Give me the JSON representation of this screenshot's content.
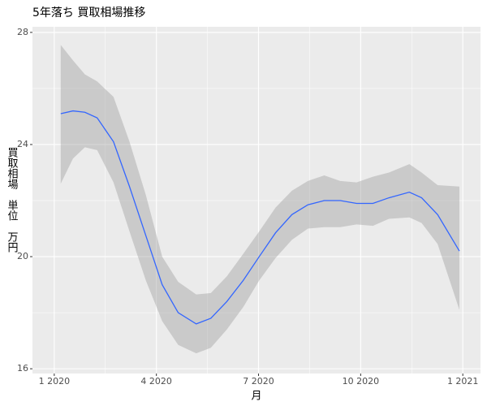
{
  "chart_data": {
    "type": "smooth",
    "title": "5年落ち 買取相場推移",
    "x_label": "月",
    "y_label": "買取相場　単位　万円",
    "x": [
      1.19,
      1.55,
      1.9,
      2.26,
      2.74,
      3.21,
      3.69,
      4.17,
      4.64,
      5.17,
      5.6,
      6.07,
      6.55,
      7.02,
      7.5,
      7.98,
      8.45,
      8.93,
      9.4,
      9.88,
      10.36,
      10.83,
      11.43,
      11.79,
      12.26,
      12.9
    ],
    "values": [
      25.1,
      25.2,
      25.15,
      24.95,
      24.1,
      22.5,
      20.75,
      19.0,
      18.0,
      17.6,
      17.8,
      18.4,
      19.15,
      20.0,
      20.85,
      21.5,
      21.85,
      22.0,
      22.0,
      21.9,
      21.9,
      22.1,
      22.3,
      22.1,
      21.5,
      20.2
    ],
    "lower": [
      22.6,
      23.5,
      23.9,
      23.8,
      22.65,
      20.9,
      19.15,
      17.7,
      16.85,
      16.55,
      16.75,
      17.4,
      18.2,
      19.15,
      19.95,
      20.6,
      21.0,
      21.05,
      21.05,
      21.15,
      21.1,
      21.35,
      21.4,
      21.2,
      20.45,
      18.1
    ],
    "upper": [
      27.55,
      27.0,
      26.5,
      26.25,
      25.7,
      24.1,
      22.2,
      20.0,
      19.1,
      18.65,
      18.7,
      19.3,
      20.1,
      20.9,
      21.75,
      22.35,
      22.7,
      22.9,
      22.7,
      22.65,
      22.85,
      23.0,
      23.3,
      23.0,
      22.55,
      22.5
    ],
    "color": "#3366ff",
    "band_color": "#999999",
    "xlim": [
      0.36,
      13.52
    ],
    "xticks": [
      {
        "value": 1,
        "label": "1 2020"
      },
      {
        "value": 4,
        "label": "4 2020"
      },
      {
        "value": 7,
        "label": "7 2020"
      },
      {
        "value": 10,
        "label": "10 2020"
      },
      {
        "value": 13,
        "label": "1 2021"
      }
    ],
    "ylim": [
      15.83,
      28.2
    ],
    "yticks": [
      16,
      20,
      24,
      28
    ],
    "grid": true
  }
}
